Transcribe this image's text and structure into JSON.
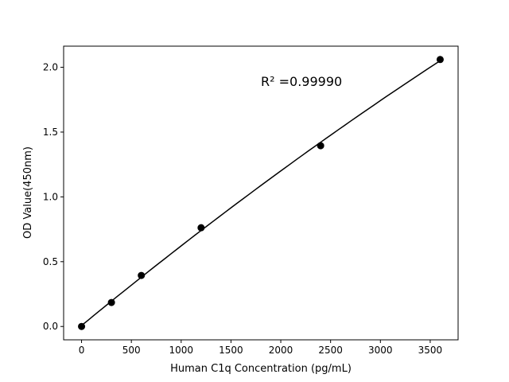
{
  "chart_data": {
    "type": "scatter",
    "title": "",
    "xlabel": "Human C1q Concentration (pg/mL)",
    "ylabel": "OD Value(450nm)",
    "xlim": [
      -180,
      3780
    ],
    "ylim": [
      -0.103,
      2.163
    ],
    "xticks": [
      0,
      500,
      1000,
      1500,
      2000,
      2500,
      3000,
      3500
    ],
    "yticks": [
      0.0,
      0.5,
      1.0,
      1.5,
      2.0
    ],
    "ytick_labels": [
      "0.0",
      "0.5",
      "1.0",
      "1.5",
      "2.0"
    ],
    "points": [
      {
        "x": 0,
        "y": 0.0
      },
      {
        "x": 300,
        "y": 0.185
      },
      {
        "x": 600,
        "y": 0.394
      },
      {
        "x": 1200,
        "y": 0.762
      },
      {
        "x": 2400,
        "y": 1.395
      },
      {
        "x": 3600,
        "y": 2.06
      }
    ],
    "fit": "polynomial curve",
    "annotation": "R² =0.99990",
    "grid": false,
    "colors": {
      "points": "#000000",
      "line": "#000000"
    }
  }
}
